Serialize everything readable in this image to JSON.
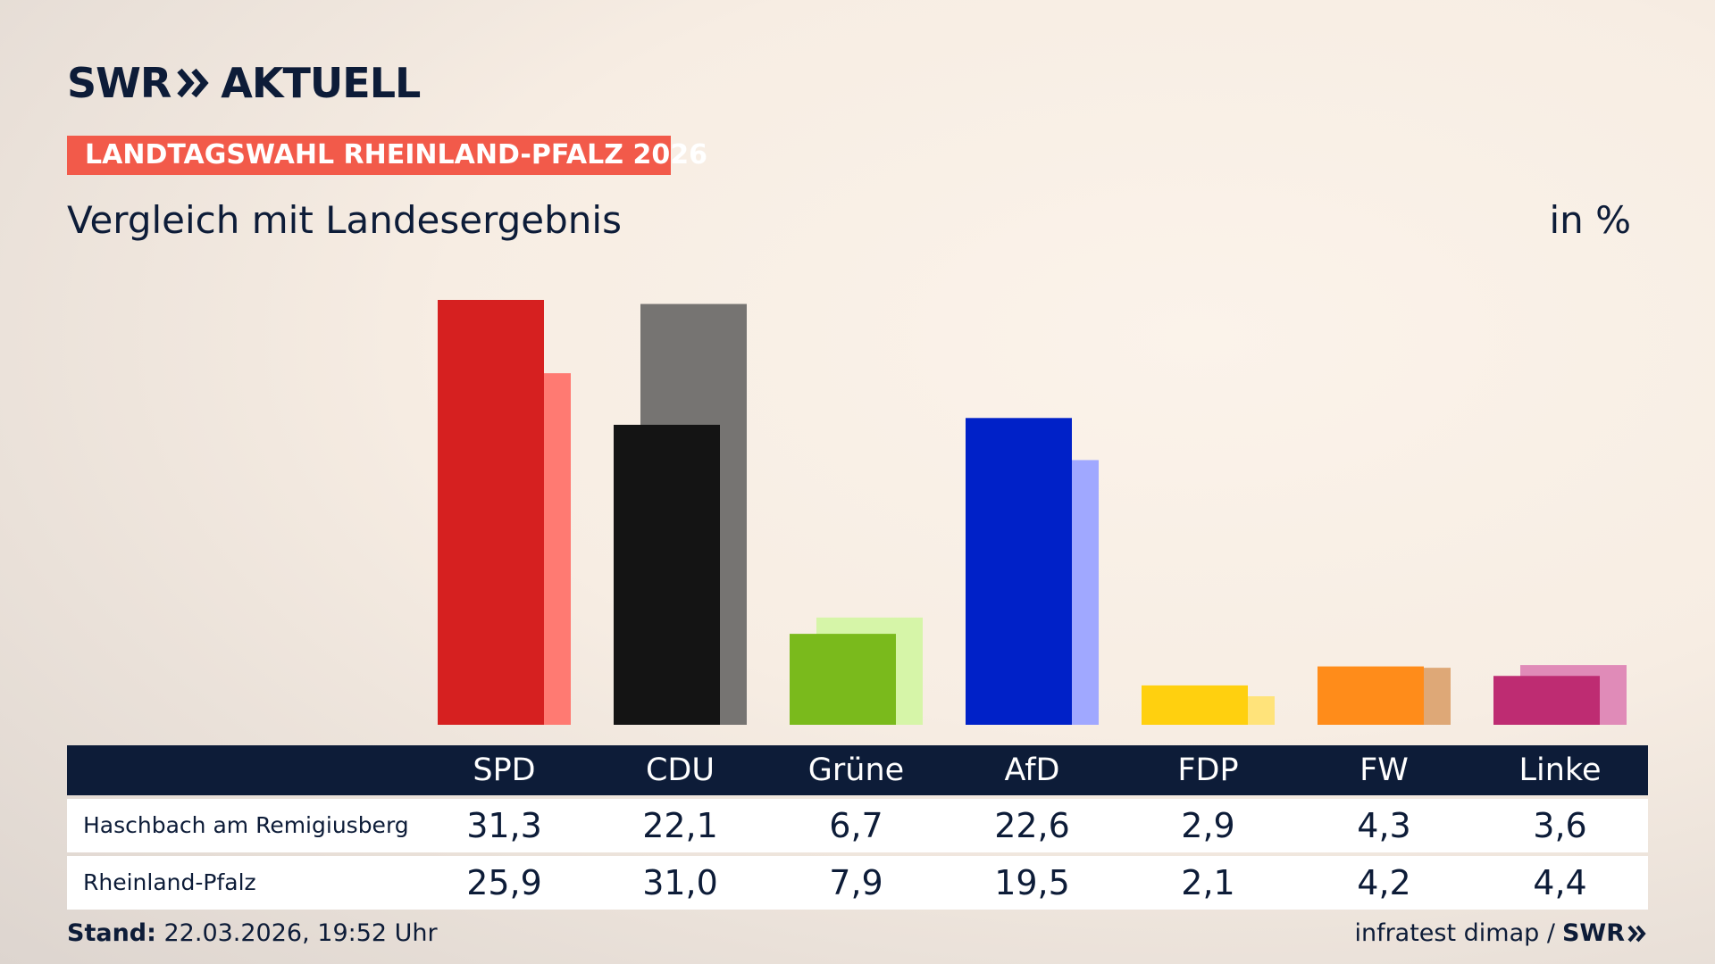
{
  "brand": {
    "logo_left": "SWR",
    "logo_right": "AKTUELL",
    "chevron_icon": "double-chevron-right-icon"
  },
  "header": {
    "tag": "LANDTAGSWAHL RHEINLAND-PFALZ 2026",
    "subtitle": "Vergleich mit Landesergebnis",
    "unit": "in %"
  },
  "colors": {
    "tag_bg": "#f25a4a",
    "navy": "#0d1c38"
  },
  "chart_data": {
    "type": "bar",
    "title": "",
    "xlabel": "",
    "ylabel": "",
    "ylim": [
      0,
      32
    ],
    "grid": false,
    "categories": [
      "SPD",
      "CDU",
      "Grüne",
      "AfD",
      "FDP",
      "FW",
      "Linke"
    ],
    "series": [
      {
        "name": "Haschbach am Remigiusberg",
        "values": [
          31.3,
          22.1,
          6.7,
          22.6,
          2.9,
          4.3,
          3.6
        ],
        "labels": [
          "31,3",
          "22,1",
          "6,7",
          "22,6",
          "2,9",
          "4,3",
          "3,6"
        ],
        "colors": [
          "#d62020",
          "#141414",
          "#7aba1c",
          "#0021c8",
          "#ffd00f",
          "#ff8c1a",
          "#be2c72"
        ]
      },
      {
        "name": "Rheinland-Pfalz",
        "values": [
          25.9,
          31.0,
          7.9,
          19.5,
          2.1,
          4.2,
          4.4
        ],
        "labels": [
          "25,9",
          "31,0",
          "7,9",
          "19,5",
          "2,1",
          "4,2",
          "4,4"
        ],
        "colors": [
          "#ff7a72",
          "#767472",
          "#d6f5a8",
          "#a0a8ff",
          "#ffe37a",
          "#dea877",
          "#e08bb8"
        ]
      }
    ]
  },
  "footer": {
    "stand_label": "Stand:",
    "stand_value": " 22.03.2026, 19:52 Uhr",
    "source": "infratest dimap /",
    "source_logo": "SWR"
  }
}
